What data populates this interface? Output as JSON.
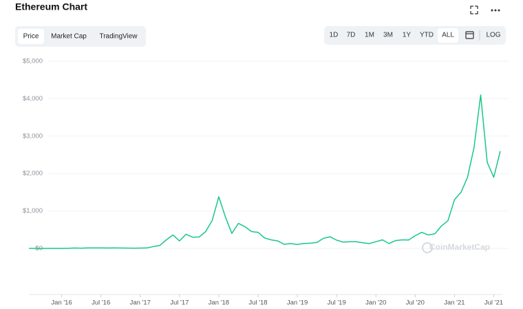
{
  "ui": {
    "title": "Ethereum Chart",
    "tabs": [
      "Price",
      "Market Cap",
      "TradingView"
    ],
    "ranges": [
      "1D",
      "7D",
      "1M",
      "3M",
      "1Y",
      "YTD",
      "ALL"
    ],
    "log": "LOG",
    "watermark": "CoinMarketCap"
  },
  "chart_data": {
    "type": "line",
    "x": [
      "2015-08",
      "2015-09",
      "2015-10",
      "2015-11",
      "2015-12",
      "2016-01",
      "2016-02",
      "2016-03",
      "2016-04",
      "2016-05",
      "2016-06",
      "2016-07",
      "2016-08",
      "2016-09",
      "2016-10",
      "2016-11",
      "2016-12",
      "2017-01",
      "2017-02",
      "2017-03",
      "2017-04",
      "2017-05",
      "2017-06",
      "2017-07",
      "2017-08",
      "2017-09",
      "2017-10",
      "2017-11",
      "2017-12",
      "2018-01",
      "2018-02",
      "2018-03",
      "2018-04",
      "2018-05",
      "2018-06",
      "2018-07",
      "2018-08",
      "2018-09",
      "2018-10",
      "2018-11",
      "2018-12",
      "2019-01",
      "2019-02",
      "2019-03",
      "2019-04",
      "2019-05",
      "2019-06",
      "2019-07",
      "2019-08",
      "2019-09",
      "2019-10",
      "2019-11",
      "2019-12",
      "2020-01",
      "2020-02",
      "2020-03",
      "2020-04",
      "2020-05",
      "2020-06",
      "2020-07",
      "2020-08",
      "2020-09",
      "2020-10",
      "2020-11",
      "2020-12",
      "2021-01",
      "2021-02",
      "2021-03",
      "2021-04",
      "2021-05",
      "2021-06",
      "2021-07",
      "2021-08"
    ],
    "series": [
      {
        "name": "Price",
        "color": "#16c784",
        "values": [
          1,
          1,
          0.5,
          1,
          1,
          2,
          6,
          11,
          8,
          12,
          14,
          12,
          11,
          13,
          11,
          9,
          8,
          10,
          13,
          50,
          80,
          230,
          360,
          200,
          380,
          300,
          305,
          450,
          750,
          1380,
          850,
          400,
          670,
          580,
          450,
          430,
          280,
          230,
          200,
          110,
          130,
          105,
          135,
          140,
          160,
          270,
          310,
          220,
          170,
          180,
          180,
          150,
          130,
          180,
          230,
          130,
          210,
          230,
          225,
          340,
          430,
          360,
          390,
          600,
          740,
          1300,
          1500,
          1900,
          2700,
          4100,
          2300,
          1900,
          2600
        ]
      }
    ],
    "ylim": [
      0,
      5000
    ],
    "yticks": [
      {
        "value": 0,
        "label": "$0"
      },
      {
        "value": 1000,
        "label": "$1,000"
      },
      {
        "value": 2000,
        "label": "$2,000"
      },
      {
        "value": 3000,
        "label": "$3,000"
      },
      {
        "value": 4000,
        "label": "$4,000"
      },
      {
        "value": 5000,
        "label": "$5,000"
      }
    ],
    "xticks": [
      {
        "value": "2016-01",
        "label": "Jan '16"
      },
      {
        "value": "2016-07",
        "label": "Jul '16"
      },
      {
        "value": "2017-01",
        "label": "Jan '17"
      },
      {
        "value": "2017-07",
        "label": "Jul '17"
      },
      {
        "value": "2018-01",
        "label": "Jan '18"
      },
      {
        "value": "2018-07",
        "label": "Jul '18"
      },
      {
        "value": "2019-01",
        "label": "Jan '19"
      },
      {
        "value": "2019-07",
        "label": "Jul '19"
      },
      {
        "value": "2020-01",
        "label": "Jan '20"
      },
      {
        "value": "2020-07",
        "label": "Jul '20"
      },
      {
        "value": "2021-01",
        "label": "Jan '21"
      },
      {
        "value": "2021-07",
        "label": "Jul '21"
      }
    ],
    "grid": true
  }
}
